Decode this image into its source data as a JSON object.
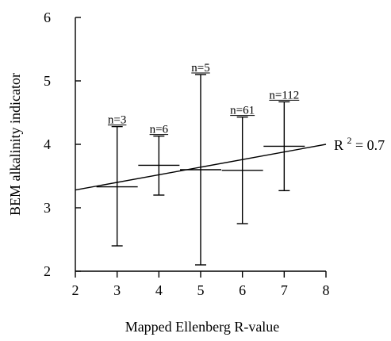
{
  "chart_data": {
    "type": "scatter",
    "xlabel": "Mapped Ellenberg R-value",
    "ylabel": "BEM alkalinity indicator",
    "xlim": [
      2,
      8
    ],
    "ylim": [
      2,
      6
    ],
    "xticks": [
      2,
      3,
      4,
      5,
      6,
      7,
      8
    ],
    "yticks": [
      2,
      3,
      4,
      5,
      6
    ],
    "grid": false,
    "points": [
      {
        "x": 3,
        "mean": 3.33,
        "low": 2.4,
        "high": 4.28,
        "n_label": "n=3"
      },
      {
        "x": 4,
        "mean": 3.67,
        "low": 3.2,
        "high": 4.13,
        "n_label": "n=6"
      },
      {
        "x": 5,
        "mean": 3.6,
        "low": 2.1,
        "high": 5.1,
        "n_label": "n=5"
      },
      {
        "x": 6,
        "mean": 3.59,
        "low": 2.75,
        "high": 4.43,
        "n_label": "n=61"
      },
      {
        "x": 7,
        "mean": 3.97,
        "low": 3.27,
        "high": 4.67,
        "n_label": "n=112"
      }
    ],
    "trendline": {
      "x": [
        2,
        8
      ],
      "y": [
        3.28,
        4.0
      ]
    },
    "r2_label": {
      "text": "R",
      "sup": "2",
      "rest": " = 0.7"
    }
  }
}
